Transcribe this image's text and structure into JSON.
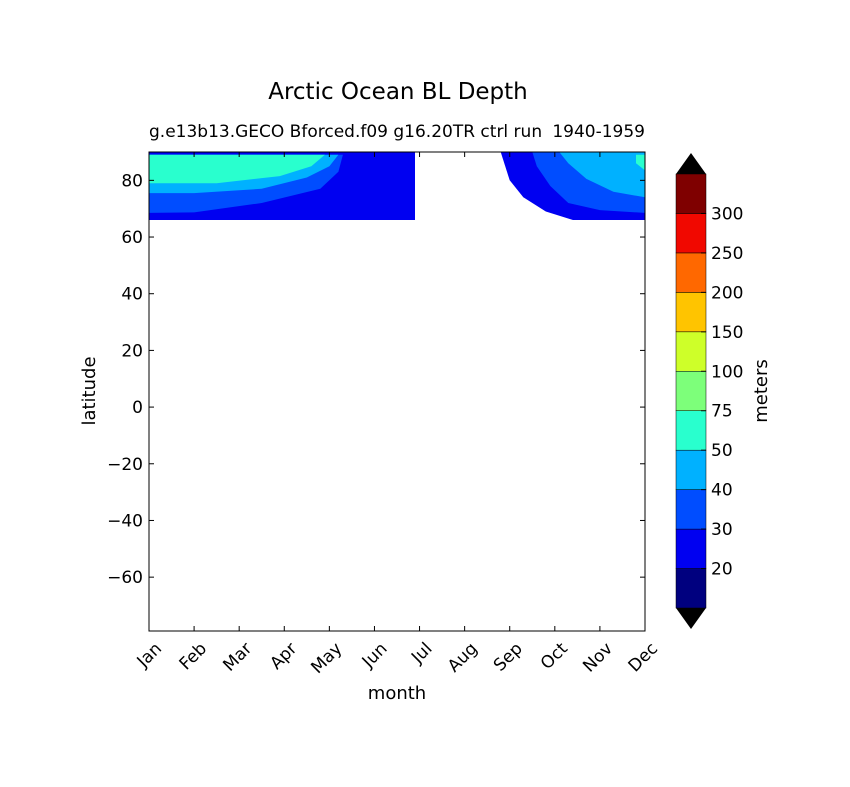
{
  "chart_data": {
    "type": "heatmap",
    "title": "Arctic Ocean BL Depth",
    "subtitle_left": "g.e13b13.GECO Bforced.f09 g16.20TR ctrl run",
    "subtitle_right": "1940-1959",
    "xlabel": "month",
    "ylabel": "latitude",
    "x_categories": [
      "Jan",
      "Feb",
      "Mar",
      "Apr",
      "May",
      "Jun",
      "Jul",
      "Aug",
      "Sep",
      "Oct",
      "Nov",
      "Dec"
    ],
    "xlim": [
      1,
      12
    ],
    "ylim": [
      -79,
      90
    ],
    "y_ticks": [
      80,
      60,
      40,
      20,
      0,
      -20,
      -40,
      -60
    ],
    "y_tick_labels": [
      "80",
      "60",
      "40",
      "20",
      "0",
      "−20",
      "−40",
      "−60"
    ],
    "data_lat_range": [
      66,
      90
    ],
    "colorbar": {
      "label": "meters",
      "levels": [
        20,
        30,
        40,
        50,
        75,
        100,
        150,
        200,
        250,
        300
      ],
      "level_labels": [
        "20",
        "30",
        "40",
        "50",
        "75",
        "100",
        "150",
        "200",
        "250",
        "300"
      ],
      "colors": [
        "#00007f",
        "#0000f1",
        "#004dff",
        "#00b1ff",
        "#29ffce",
        "#7dff7a",
        "#ceff29",
        "#ffc400",
        "#ff6800",
        "#f10800",
        "#7f0000"
      ],
      "extend": "both",
      "extend_min_color": "#000000",
      "extend_max_color": "#000000"
    },
    "contour_regions": [
      {
        "level_index": 1,
        "polygon": [
          [
            1,
            90
          ],
          [
            6.9,
            90
          ],
          [
            6.9,
            66
          ],
          [
            1,
            66
          ]
        ]
      },
      {
        "level_index": 1,
        "polygon": [
          [
            8.8,
            90
          ],
          [
            12,
            90
          ],
          [
            12,
            66
          ],
          [
            10.4,
            66
          ],
          [
            9.8,
            69
          ],
          [
            9.3,
            74
          ],
          [
            9,
            80
          ]
        ]
      },
      {
        "level_index": 2,
        "polygon": [
          [
            1,
            89
          ],
          [
            5.3,
            89
          ],
          [
            5.2,
            83
          ],
          [
            4.8,
            77
          ],
          [
            3.5,
            72
          ],
          [
            2,
            68.7
          ],
          [
            1,
            68.5
          ]
        ]
      },
      {
        "level_index": 2,
        "polygon": [
          [
            9.5,
            90
          ],
          [
            12,
            90
          ],
          [
            12,
            68.5
          ],
          [
            11,
            69.5
          ],
          [
            10.3,
            72
          ],
          [
            9.9,
            78
          ],
          [
            9.6,
            85
          ]
        ]
      },
      {
        "level_index": 3,
        "polygon": [
          [
            1,
            89
          ],
          [
            5.2,
            89
          ],
          [
            5,
            85
          ],
          [
            4.5,
            81
          ],
          [
            3.5,
            77
          ],
          [
            2,
            75.5
          ],
          [
            1,
            75.5
          ]
        ]
      },
      {
        "level_index": 3,
        "polygon": [
          [
            10.1,
            90
          ],
          [
            12,
            90
          ],
          [
            12,
            74
          ],
          [
            11.3,
            76
          ],
          [
            10.7,
            80.5
          ],
          [
            10.3,
            86
          ]
        ]
      },
      {
        "level_index": 4,
        "polygon": [
          [
            1,
            89
          ],
          [
            4.9,
            89
          ],
          [
            4.6,
            85
          ],
          [
            3.9,
            81.5
          ],
          [
            2.5,
            79
          ],
          [
            1,
            79
          ]
        ]
      },
      {
        "level_index": 4,
        "polygon": [
          [
            11.8,
            89
          ],
          [
            12,
            89
          ],
          [
            12,
            83.5
          ],
          [
            11.8,
            86
          ]
        ]
      }
    ]
  }
}
